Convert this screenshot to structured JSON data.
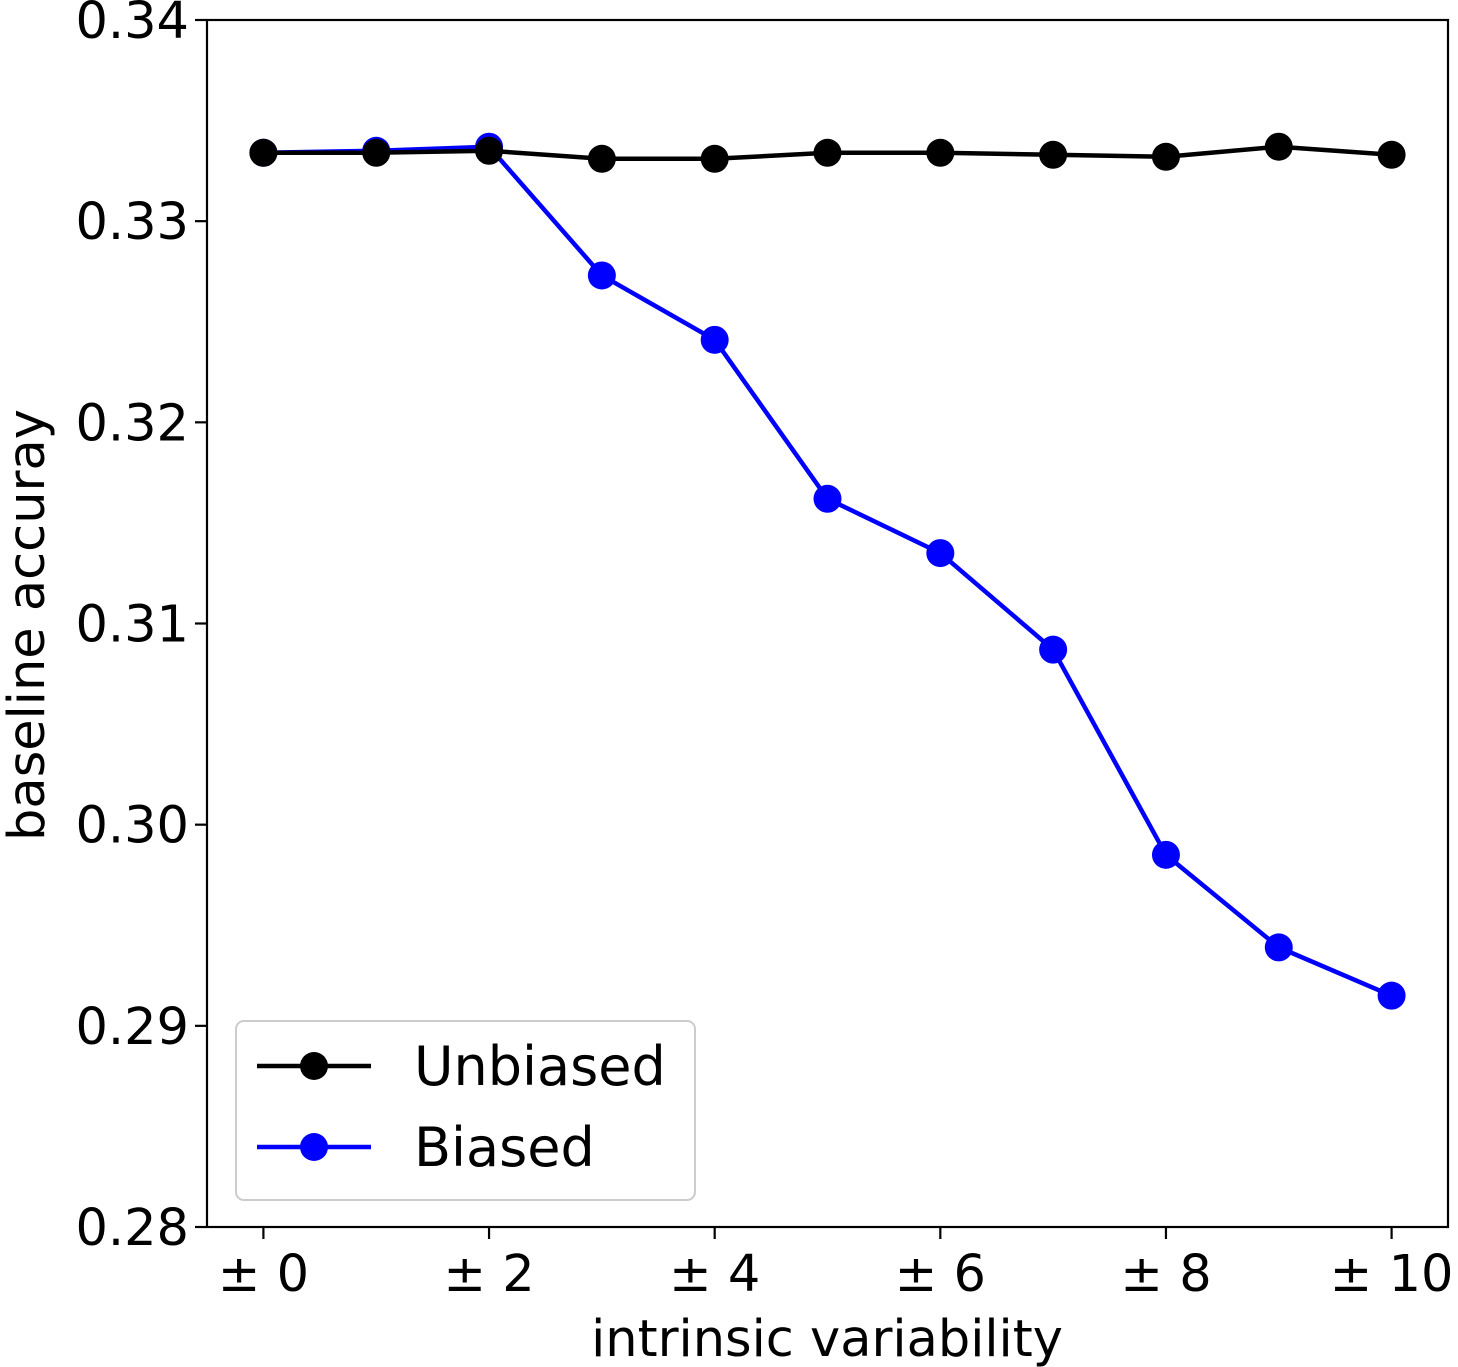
{
  "chart_data": {
    "type": "line",
    "title": "",
    "xlabel": "intrinsic variability",
    "ylabel": "baseline accuray",
    "x": [
      0,
      1,
      2,
      3,
      4,
      5,
      6,
      7,
      8,
      9,
      10
    ],
    "xlim": [
      -0.5,
      10.5
    ],
    "ylim": [
      0.28,
      0.34
    ],
    "xticks": [
      0,
      2,
      4,
      6,
      8,
      10
    ],
    "xtick_labels": [
      "± 0",
      "± 2",
      "± 4",
      "± 6",
      "± 8",
      "± 10"
    ],
    "yticks": [
      0.28,
      0.29,
      0.3,
      0.31,
      0.32,
      0.33,
      0.34
    ],
    "ytick_labels": [
      "0.28",
      "0.29",
      "0.30",
      "0.31",
      "0.32",
      "0.33",
      "0.34"
    ],
    "grid": false,
    "legend_position": "bottom-left",
    "series": [
      {
        "name": "Biased",
        "color": "#0000ff",
        "values": [
          0.3334,
          0.3335,
          0.3337,
          0.3273,
          0.3241,
          0.3162,
          0.3135,
          0.3087,
          0.2985,
          0.2939,
          0.2915
        ]
      },
      {
        "name": "Unbiased",
        "color": "#000000",
        "values": [
          0.3334,
          0.3334,
          0.3335,
          0.3331,
          0.3331,
          0.3334,
          0.3334,
          0.3333,
          0.3332,
          0.3337,
          0.3333
        ]
      }
    ],
    "legend": [
      "Unbiased",
      "Biased"
    ]
  }
}
